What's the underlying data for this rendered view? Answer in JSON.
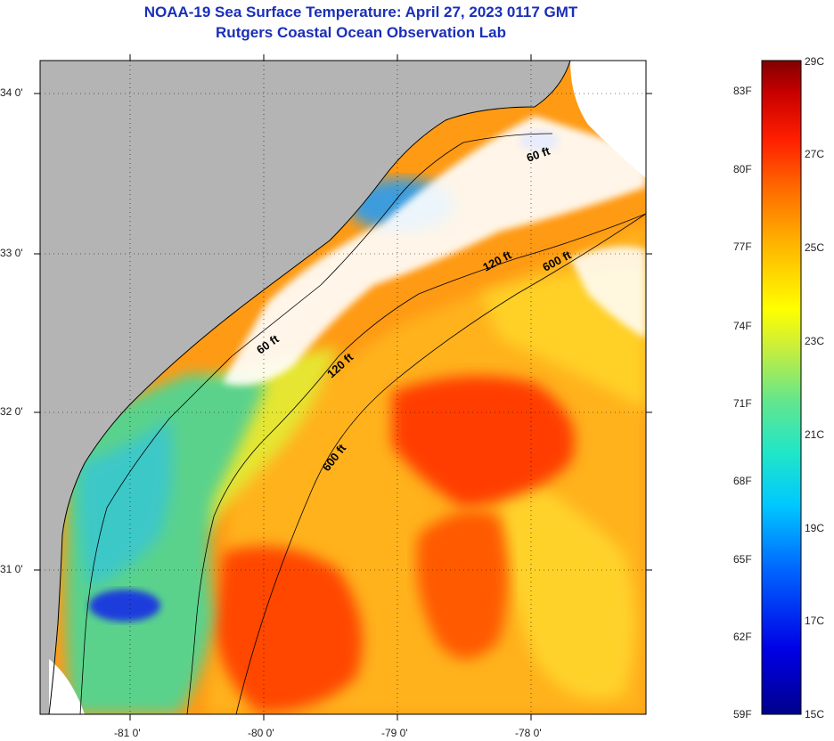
{
  "header": {
    "title": "NOAA-19 Sea Surface Temperature:  April 27, 2023 0117 GMT",
    "subtitle": "Rutgers Coastal Ocean Observation Lab"
  },
  "map": {
    "lat_labels": [
      "34 0'",
      "33 0'",
      "32 0'",
      "31 0'"
    ],
    "lon_labels": [
      "-81 0'",
      "-80 0'",
      "-79 0'",
      "-78 0'"
    ],
    "isobath_labels": [
      "60 ft",
      "60 ft",
      "120 ft",
      "120 ft",
      "600 ft",
      "600 ft"
    ],
    "land_color": "#b4b4b4",
    "cloud_color": "#ffffff"
  },
  "colorbar": {
    "fahrenheit": [
      "83F",
      "80F",
      "77F",
      "74F",
      "71F",
      "68F",
      "65F",
      "62F",
      "59F"
    ],
    "celsius": [
      "29C",
      "27C",
      "25C",
      "23C",
      "21C",
      "19C",
      "17C",
      "15C"
    ],
    "range_celsius": [
      15,
      29
    ]
  }
}
